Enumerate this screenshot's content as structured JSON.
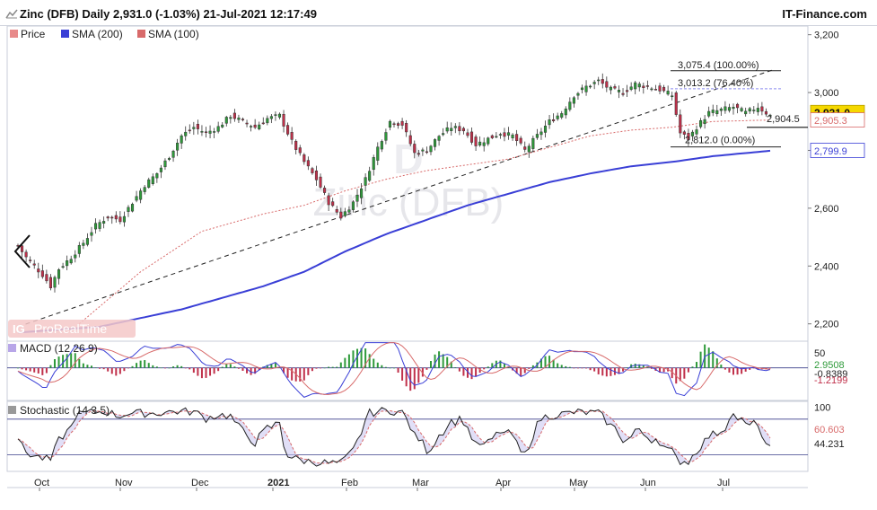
{
  "header": {
    "title": "Zinc (DFB) Daily 2,931.0 (-1.03%) 21-Jul-2021 12:17:49",
    "brand": "IT-Finance.com",
    "icon": "chart-icon"
  },
  "watermark": {
    "text": "Zinc (DFB)",
    "logo": "D"
  },
  "provider": {
    "icon_text": "IG",
    "label": "ProRealTime"
  },
  "colors": {
    "up": "#2e9a3a",
    "down": "#c0304a",
    "sma200": "#3a3fd6",
    "sma100": "#d86a6a",
    "trend": "#222222",
    "price_tag": "#f5d800"
  },
  "chart_data": [
    {
      "type": "candlestick",
      "panel": "price",
      "legend": [
        {
          "label": "Price",
          "color": "#e88a8a"
        },
        {
          "label": "SMA (200)",
          "color": "#3a3fd6"
        },
        {
          "label": "SMA (100)",
          "color": "#d86a6a"
        }
      ],
      "x_ticks": [
        "Oct",
        "Nov",
        "Dec",
        "2021",
        "Feb",
        "Mar",
        "Apr",
        "May",
        "Jun",
        "Jul"
      ],
      "y_ticks": [
        "3,200",
        "3,000",
        "2,800",
        "2,600",
        "2,400",
        "2,200"
      ],
      "ylim": [
        2140,
        3230
      ],
      "close_path": [
        [
          0,
          2470
        ],
        [
          2,
          2430
        ],
        [
          4,
          2400
        ],
        [
          6,
          2370
        ],
        [
          8,
          2330
        ],
        [
          10,
          2390
        ],
        [
          13,
          2430
        ],
        [
          16,
          2480
        ],
        [
          19,
          2540
        ],
        [
          22,
          2570
        ],
        [
          25,
          2560
        ],
        [
          28,
          2620
        ],
        [
          31,
          2680
        ],
        [
          34,
          2720
        ],
        [
          37,
          2780
        ],
        [
          40,
          2850
        ],
        [
          43,
          2880
        ],
        [
          46,
          2860
        ],
        [
          49,
          2880
        ],
        [
          52,
          2920
        ],
        [
          55,
          2900
        ],
        [
          58,
          2880
        ],
        [
          61,
          2910
        ],
        [
          64,
          2920
        ],
        [
          67,
          2830
        ],
        [
          70,
          2760
        ],
        [
          73,
          2700
        ],
        [
          76,
          2620
        ],
        [
          79,
          2570
        ],
        [
          82,
          2620
        ],
        [
          85,
          2700
        ],
        [
          88,
          2810
        ],
        [
          91,
          2900
        ],
        [
          94,
          2890
        ],
        [
          97,
          2790
        ],
        [
          100,
          2800
        ],
        [
          103,
          2850
        ],
        [
          106,
          2880
        ],
        [
          109,
          2870
        ],
        [
          112,
          2820
        ],
        [
          115,
          2840
        ],
        [
          118,
          2860
        ],
        [
          121,
          2850
        ],
        [
          124,
          2800
        ],
        [
          127,
          2850
        ],
        [
          130,
          2900
        ],
        [
          133,
          2930
        ],
        [
          136,
          2990
        ],
        [
          139,
          3020
        ],
        [
          142,
          3040
        ],
        [
          145,
          3010
        ],
        [
          148,
          3000
        ],
        [
          151,
          3030
        ],
        [
          154,
          3020
        ],
        [
          157,
          3010
        ],
        [
          160,
          2990
        ],
        [
          162,
          2860
        ],
        [
          164,
          2840
        ],
        [
          166,
          2880
        ],
        [
          169,
          2930
        ],
        [
          172,
          2940
        ],
        [
          175,
          2950
        ],
        [
          178,
          2930
        ],
        [
          181,
          2950
        ],
        [
          184,
          2920
        ]
      ],
      "sma200_path": [
        [
          0,
          2170
        ],
        [
          20,
          2190
        ],
        [
          40,
          2250
        ],
        [
          60,
          2330
        ],
        [
          70,
          2380
        ],
        [
          80,
          2450
        ],
        [
          90,
          2510
        ],
        [
          100,
          2560
        ],
        [
          110,
          2610
        ],
        [
          120,
          2650
        ],
        [
          130,
          2690
        ],
        [
          140,
          2720
        ],
        [
          150,
          2745
        ],
        [
          160,
          2760
        ],
        [
          170,
          2780
        ],
        [
          185,
          2799.9
        ]
      ],
      "sma100_path": [
        [
          15,
          2200
        ],
        [
          30,
          2380
        ],
        [
          45,
          2520
        ],
        [
          60,
          2580
        ],
        [
          70,
          2610
        ],
        [
          80,
          2660
        ],
        [
          90,
          2700
        ],
        [
          100,
          2730
        ],
        [
          110,
          2750
        ],
        [
          120,
          2770
        ],
        [
          130,
          2810
        ],
        [
          140,
          2850
        ],
        [
          150,
          2870
        ],
        [
          160,
          2880
        ],
        [
          170,
          2900
        ],
        [
          185,
          2905.3
        ]
      ],
      "trendline": [
        [
          0,
          2190
        ],
        [
          185,
          3080
        ]
      ],
      "right_labels": [
        {
          "text": "2,931.0",
          "value": 2931.0,
          "kind": "price"
        },
        {
          "text": "2,905.3",
          "value": 2905.3,
          "kind": "sma100"
        },
        {
          "text": "2,799.9",
          "value": 2799.9,
          "kind": "sma200"
        }
      ],
      "levels": [
        {
          "text": "3,075.4 (100.00%)",
          "value": 3075.4
        },
        {
          "text": "3,013.2 (76.40%)",
          "value": 3013.2
        },
        {
          "text": "2,812.0 (0.00%)",
          "value": 2812.0
        }
      ],
      "annotation": {
        "text": "2,904.5",
        "value": 2904.5
      }
    },
    {
      "type": "bar",
      "panel": "macd",
      "title": "MACD (12 26 9)",
      "y_ticks": [
        "50"
      ],
      "ylim": [
        -110,
        90
      ],
      "right_labels": [
        {
          "text": "2.9508",
          "value": 2.9508
        },
        {
          "text": "-0.8389",
          "value": -0.8389
        },
        {
          "text": "-1.2199",
          "value": -1.2199
        }
      ]
    },
    {
      "type": "line",
      "panel": "stochastic",
      "title": "Stochastic (14 3 5)",
      "y_ticks": [
        "100"
      ],
      "ylim": [
        -8,
        110
      ],
      "overbought": 80,
      "oversold": 20,
      "right_labels": [
        {
          "text": "60.603",
          "value": 60.603
        },
        {
          "text": "44.231",
          "value": 44.231
        }
      ]
    }
  ]
}
